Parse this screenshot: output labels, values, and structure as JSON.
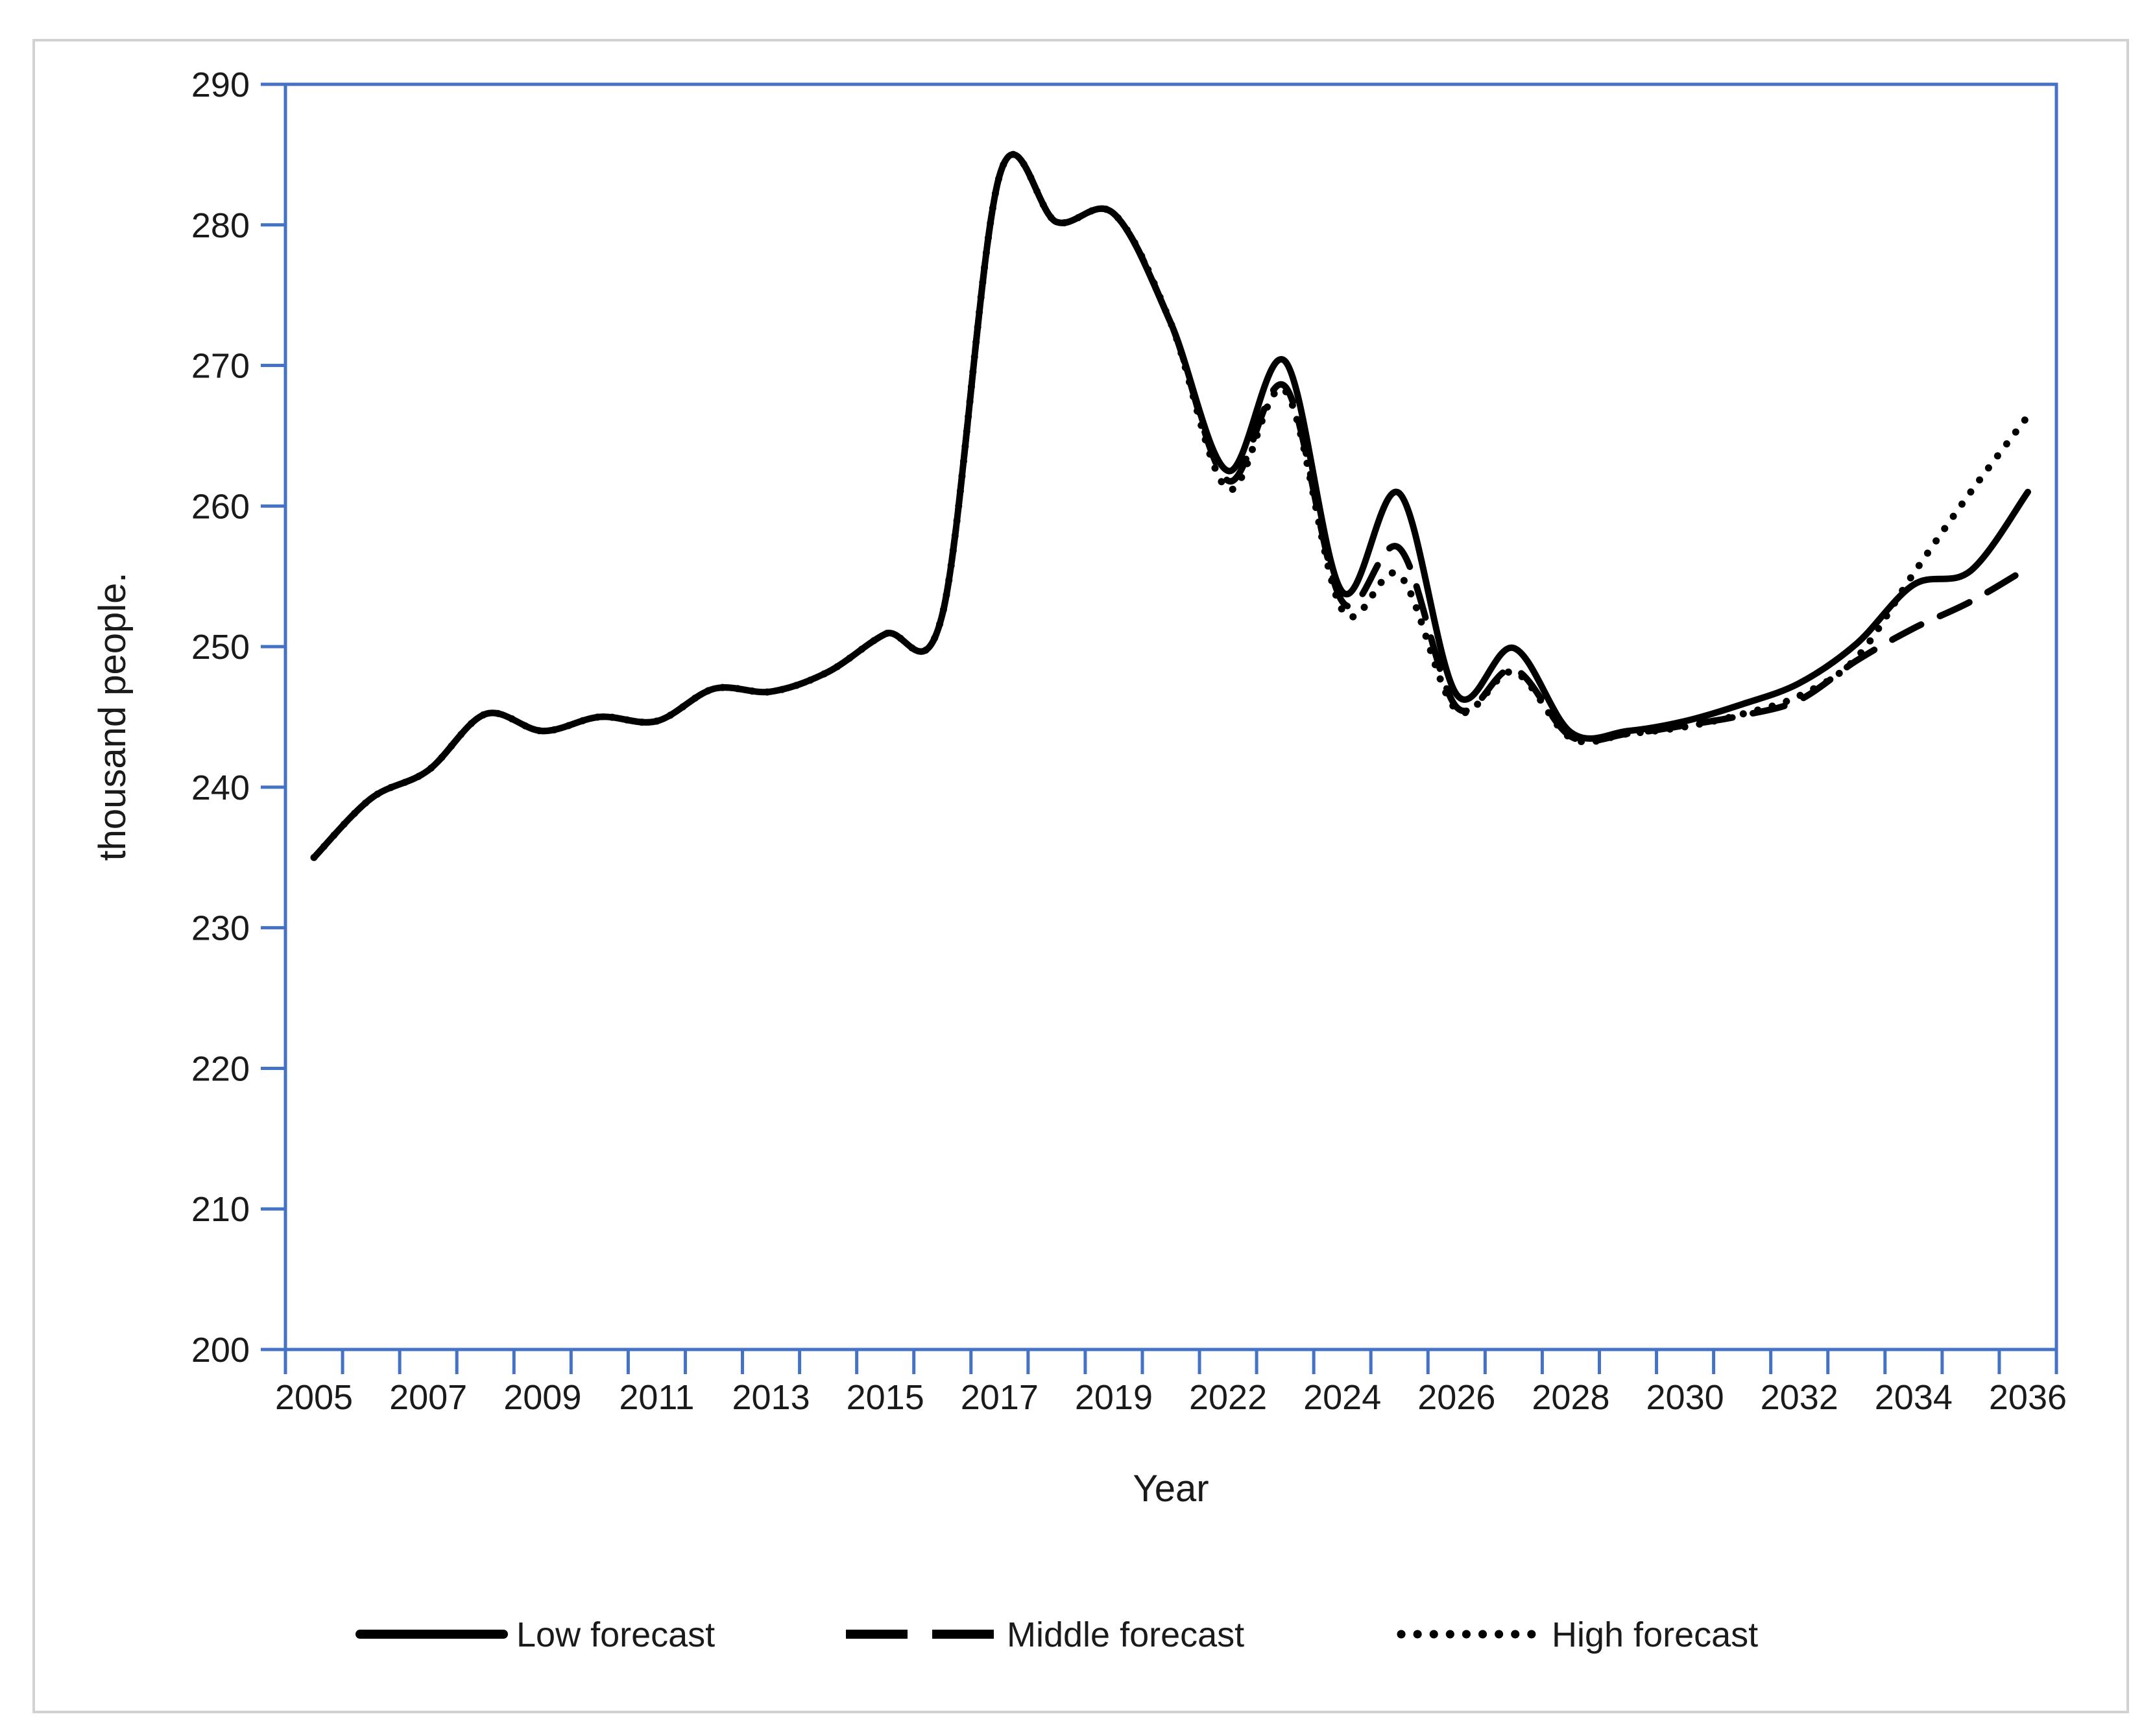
{
  "figure": {
    "background_color": "#ffffff",
    "border_color": "#d2d2d2",
    "axis_color": "#4472c4",
    "line_color": "#000000"
  },
  "chart_data": {
    "type": "line",
    "title": "",
    "xlabel": "Year",
    "ylabel": "thousand people.",
    "ylim": [
      200,
      290
    ],
    "ytick_step": 10,
    "grid": false,
    "legend_position": "bottom",
    "y_tick_labels": [
      "290",
      "280",
      "270",
      "260",
      "250",
      "240",
      "230",
      "220",
      "210",
      "200"
    ],
    "x_tick_labels": [
      "2005",
      "2007",
      "2009",
      "2011",
      "2013",
      "2015",
      "2017",
      "2019",
      "2022",
      "2024",
      "2026",
      "2028",
      "2030",
      "2032",
      "2034",
      "2036"
    ],
    "categories": [
      2005,
      2006,
      2007,
      2008,
      2009,
      2010,
      2011,
      2012,
      2013,
      2014,
      2015,
      2016,
      2017,
      2018,
      2019,
      2021,
      2022,
      2023,
      2024,
      2025,
      2026,
      2027,
      2028,
      2029,
      2030,
      2031,
      2032,
      2033,
      2034,
      2035,
      2036
    ],
    "series": [
      {
        "name": "Low forecast",
        "style": "solid",
        "values": [
          235.0,
          239.2,
          241.2,
          245.2,
          244.0,
          245.0,
          244.7,
          247.0,
          246.8,
          248.2,
          250.9,
          252.3,
          283.5,
          280.2,
          280.8,
          273.0,
          262.5,
          270.3,
          253.9,
          260.9,
          246.6,
          249.9,
          243.9,
          244.0,
          244.7,
          245.9,
          247.4,
          250.2,
          254.4,
          255.4,
          261.0
        ]
      },
      {
        "name": "Middle forecast",
        "style": "dashed",
        "values": [
          235.0,
          239.2,
          241.2,
          245.2,
          244.0,
          245.0,
          244.7,
          247.0,
          246.8,
          248.2,
          250.9,
          252.3,
          283.5,
          280.2,
          280.8,
          273.0,
          261.8,
          268.5,
          253.2,
          257.0,
          245.7,
          248.4,
          243.6,
          243.8,
          244.4,
          245.1,
          246.2,
          249.0,
          251.3,
          253.2,
          255.6
        ]
      },
      {
        "name": "High forecast",
        "style": "dotted",
        "values": [
          235.0,
          239.2,
          241.2,
          245.2,
          244.0,
          245.0,
          244.7,
          247.0,
          246.8,
          248.2,
          250.9,
          252.3,
          283.5,
          280.2,
          280.8,
          273.0,
          261.2,
          268.2,
          252.6,
          255.1,
          245.5,
          248.2,
          243.5,
          243.8,
          244.3,
          245.2,
          246.5,
          249.2,
          255.2,
          261.0,
          266.4
        ]
      }
    ]
  }
}
